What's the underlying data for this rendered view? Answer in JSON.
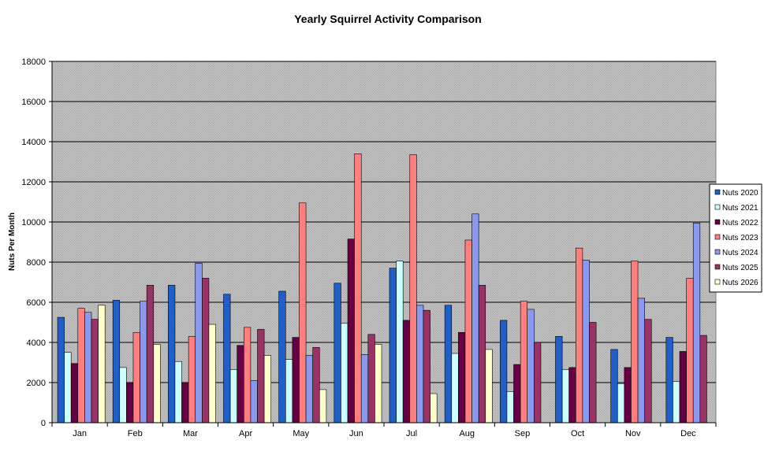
{
  "chart_data": {
    "type": "bar",
    "title": "Yearly Squirrel Activity Comparison",
    "xlabel": "",
    "ylabel": "Nuts Per Month",
    "ylim": [
      0,
      18000
    ],
    "yticks": [
      0,
      2000,
      4000,
      6000,
      8000,
      10000,
      12000,
      14000,
      16000,
      18000
    ],
    "grid": true,
    "legend_position": "right",
    "categories": [
      "Jan",
      "Feb",
      "Mar",
      "Apr",
      "May",
      "Jun",
      "Jul",
      "Aug",
      "Sep",
      "Oct",
      "Nov",
      "Dec"
    ],
    "series": [
      {
        "name": "Nuts 2020",
        "color": "#1f5fc8",
        "values": [
          5250,
          6100,
          6850,
          6400,
          6550,
          6950,
          7700,
          5850,
          5100,
          4300,
          3650,
          4250
        ]
      },
      {
        "name": "Nuts 2021",
        "color": "#ccffff",
        "values": [
          3500,
          2750,
          3050,
          2650,
          3150,
          4950,
          8050,
          3450,
          1550,
          2650,
          1950,
          2050
        ]
      },
      {
        "name": "Nuts 2022",
        "color": "#660044",
        "values": [
          2950,
          2000,
          2000,
          3850,
          4250,
          9150,
          5100,
          4500,
          2900,
          2750,
          2750,
          3550
        ]
      },
      {
        "name": "Nuts 2023",
        "color": "#ff7f7f",
        "values": [
          5700,
          4500,
          4300,
          4750,
          10950,
          13400,
          13350,
          9100,
          6050,
          8700,
          8050,
          7200
        ]
      },
      {
        "name": "Nuts 2024",
        "color": "#8899ee",
        "values": [
          5500,
          6050,
          7950,
          2100,
          3350,
          3400,
          5850,
          10400,
          5650,
          8100,
          6200,
          9950
        ]
      },
      {
        "name": "Nuts 2025",
        "color": "#993366",
        "values": [
          5150,
          6850,
          7200,
          4650,
          3750,
          4400,
          5600,
          6850,
          4000,
          5000,
          5150,
          4350
        ]
      },
      {
        "name": "Nuts 2026",
        "color": "#ffffcc",
        "values": [
          5850,
          3900,
          4900,
          3350,
          1650,
          3900,
          1450,
          3650,
          null,
          null,
          null,
          null
        ]
      }
    ]
  }
}
